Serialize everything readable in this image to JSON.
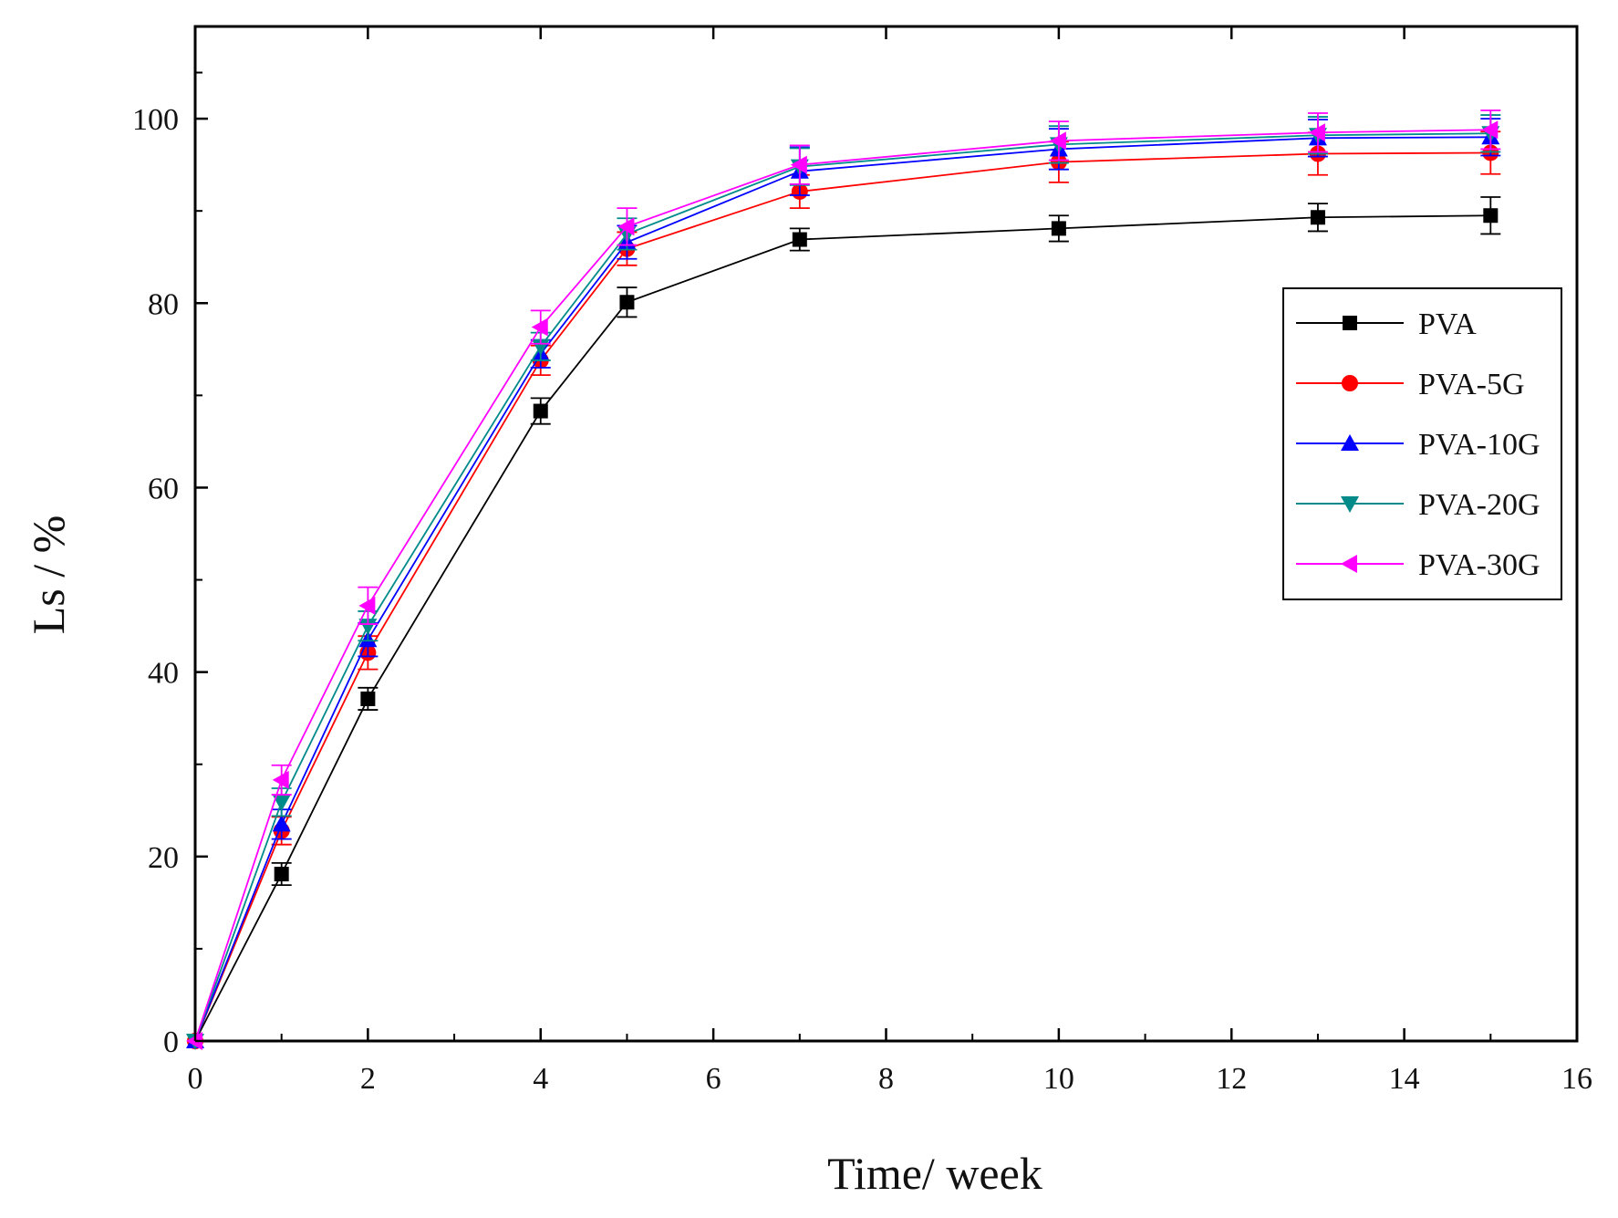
{
  "chart_data": {
    "type": "line",
    "title": "",
    "xlabel": "Time/ week",
    "ylabel": "Ls / %",
    "xlim": [
      0,
      16
    ],
    "ylim": [
      0,
      110
    ],
    "xticks": [
      0,
      2,
      4,
      6,
      8,
      10,
      12,
      14,
      16
    ],
    "yticks": [
      0,
      20,
      40,
      60,
      80,
      100
    ],
    "x": [
      0,
      1,
      2,
      4,
      5,
      7,
      10,
      13,
      15
    ],
    "legend_position": "right",
    "series": [
      {
        "name": "PVA",
        "color": "#000000",
        "marker": "square",
        "values": [
          0,
          18.1,
          37.1,
          68.3,
          80.1,
          86.9,
          88.1,
          89.3,
          89.5
        ],
        "errors": [
          0,
          1.2,
          1.2,
          1.4,
          1.6,
          1.2,
          1.4,
          1.5,
          2.0
        ]
      },
      {
        "name": "PVA-5G",
        "color": "#ff0000",
        "marker": "circle",
        "values": [
          0,
          22.8,
          42.1,
          73.8,
          85.9,
          92.1,
          95.3,
          96.2,
          96.3
        ],
        "errors": [
          0,
          1.5,
          1.8,
          1.6,
          1.8,
          1.8,
          2.2,
          2.3,
          2.3
        ]
      },
      {
        "name": "PVA-10G",
        "color": "#0000ff",
        "marker": "triangle-up",
        "values": [
          0,
          23.5,
          43.5,
          74.5,
          86.6,
          94.3,
          96.7,
          97.9,
          98.0
        ],
        "errors": [
          0,
          1.6,
          1.8,
          1.5,
          1.8,
          2.6,
          2.2,
          2.0,
          2.0
        ]
      },
      {
        "name": "PVA-20G",
        "color": "#008b8b",
        "marker": "triangle-down",
        "values": [
          0,
          25.9,
          45.0,
          75.3,
          87.5,
          94.8,
          97.2,
          98.2,
          98.4
        ],
        "errors": [
          0,
          1.5,
          1.6,
          1.5,
          1.7,
          2.0,
          2.0,
          2.0,
          2.0
        ]
      },
      {
        "name": "PVA-30G",
        "color": "#ff00ff",
        "marker": "triangle-left",
        "values": [
          0,
          28.3,
          47.2,
          77.4,
          88.3,
          95.0,
          97.6,
          98.5,
          98.8
        ],
        "errors": [
          0,
          1.6,
          2.0,
          1.8,
          2.0,
          2.1,
          2.1,
          2.1,
          2.1
        ]
      }
    ]
  }
}
